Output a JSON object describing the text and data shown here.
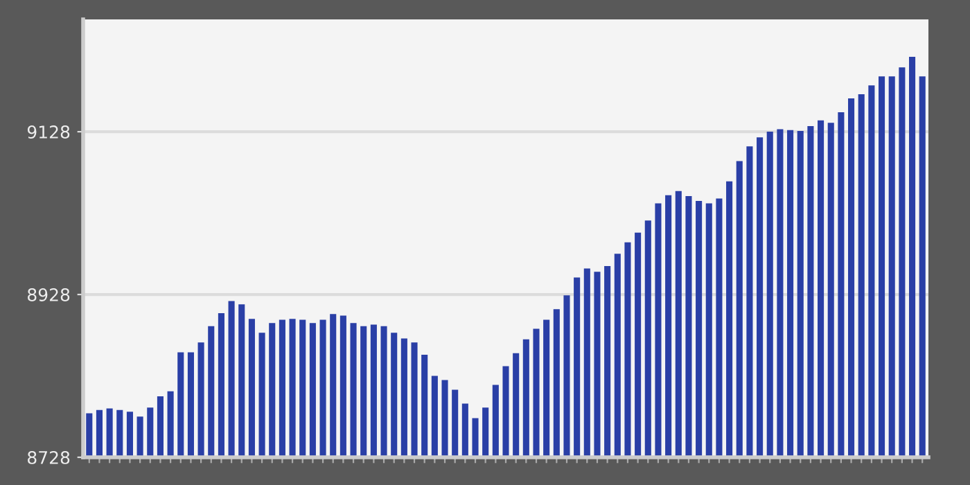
{
  "chart_data": {
    "type": "bar",
    "relative": false,
    "categories": [
      null,
      null,
      null,
      null,
      null,
      null,
      null,
      null,
      null,
      null,
      null,
      null,
      null,
      null,
      null,
      null,
      null,
      null,
      null,
      null,
      null,
      null,
      null,
      null,
      null,
      null,
      null,
      null,
      null,
      null,
      null,
      null,
      null,
      null,
      null,
      null,
      null,
      null,
      null,
      null,
      null,
      null,
      null,
      null,
      null,
      null,
      null,
      null,
      null,
      null,
      null,
      null,
      null,
      null,
      null,
      null,
      null,
      null,
      null,
      null,
      null,
      null,
      null,
      null,
      null,
      null,
      null,
      null,
      null,
      null,
      null,
      null,
      null,
      null,
      null,
      null,
      null,
      null,
      null,
      null,
      null,
      null,
      null
    ],
    "values": [
      8782,
      8786,
      8788,
      8786,
      8784,
      8778,
      8789,
      8803,
      8809,
      8857,
      8857,
      8869,
      8889,
      8905,
      8920,
      8916,
      8898,
      8881,
      8893,
      8897,
      8898,
      8897,
      8893,
      8897,
      8904,
      8902,
      8893,
      8889,
      8891,
      8889,
      8881,
      8874,
      8869,
      8854,
      8828,
      8823,
      8811,
      8794,
      8776,
      8789,
      8817,
      8840,
      8856,
      8873,
      8886,
      8897,
      8910,
      8927,
      8949,
      8960,
      8956,
      8963,
      8978,
      8992,
      9004,
      9019,
      9040,
      9050,
      9055,
      9049,
      9043,
      9040,
      9046,
      9067,
      9092,
      9110,
      9121,
      9128,
      9131,
      9130,
      9129,
      9135,
      9142,
      9139,
      9152,
      9169,
      9174,
      9185,
      9196,
      9196,
      9207,
      9220,
      9196
    ],
    "color": "#2a3fa6",
    "ylim": [
      8728,
      9266
    ],
    "yticks": [
      8728,
      8928,
      9128
    ],
    "grid": "y"
  }
}
